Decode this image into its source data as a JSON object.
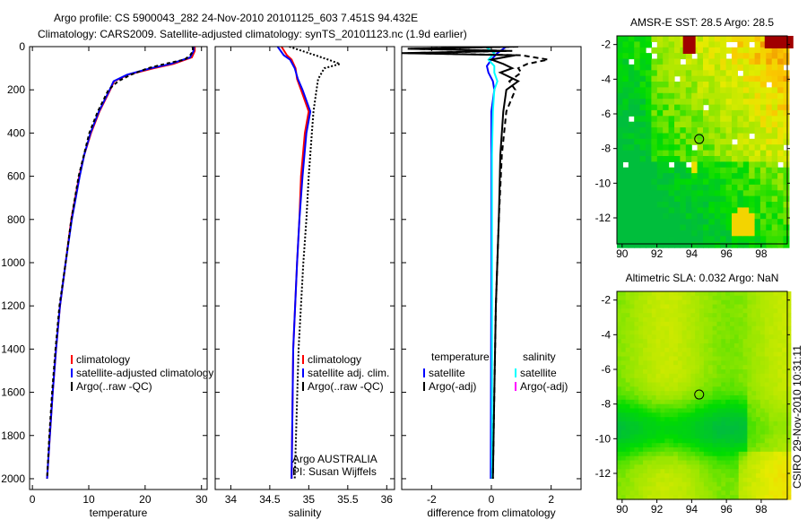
{
  "header": {
    "title_line1": "Argo profile: CS 5900043_282 24-Nov-2010 20101125_603 7.451S 94.432E",
    "title_line2": "Climatology: CARS2009. Satellite-adjusted climatology: synTS_20101123.nc (1.9d earlier)"
  },
  "side_label": "CSIRO 29-Nov-2010 10:31:11",
  "colors": {
    "climatology": "#ff0000",
    "satellite": "#0000ff",
    "argo": "#000000",
    "sal_satellite": "#00ffff",
    "sal_argo": "#ff00ff"
  },
  "chart_data": [
    {
      "type": "line",
      "id": "temperature",
      "xlabel": "temperature",
      "xlim": [
        -0.5,
        31
      ],
      "ylim": [
        0,
        2050
      ],
      "xticks": [
        "0",
        "10",
        "20",
        "30"
      ],
      "xtick_values": [
        0,
        10,
        20,
        30
      ],
      "yticks": [
        "0",
        "200",
        "400",
        "600",
        "800",
        "1000",
        "1200",
        "1400",
        "1600",
        "1800",
        "2000"
      ],
      "ytick_values": [
        0,
        200,
        400,
        600,
        800,
        1000,
        1200,
        1400,
        1600,
        1800,
        2000
      ],
      "legend": [
        "climatology",
        "satellite-adjusted climatology",
        "Argo(..raw -QC)"
      ],
      "series": [
        {
          "name": "climatology",
          "color": "#ff0000",
          "dash": "",
          "depth": [
            0,
            20,
            50,
            80,
            100,
            130,
            160,
            200,
            300,
            400,
            500,
            600,
            800,
            1000,
            1200,
            1400,
            1600,
            1800,
            2000
          ],
          "values": [
            28.8,
            28.8,
            28.3,
            25,
            21.5,
            17,
            14.5,
            13.8,
            11.9,
            10.4,
            9.2,
            8.3,
            6.9,
            5.9,
            4.9,
            4.2,
            3.6,
            3.1,
            2.6
          ]
        },
        {
          "name": "satellite-adjusted climatology",
          "color": "#0000ff",
          "dash": "",
          "depth": [
            0,
            20,
            50,
            80,
            100,
            130,
            160,
            200,
            300,
            400,
            500,
            600,
            800,
            1000,
            1200,
            1400,
            1600,
            1800,
            2000
          ],
          "values": [
            28.6,
            28.6,
            28.0,
            24.5,
            21,
            16.8,
            14.4,
            13.7,
            11.8,
            10.3,
            9.2,
            8.4,
            7.0,
            5.9,
            4.9,
            4.2,
            3.6,
            3.1,
            2.6
          ]
        },
        {
          "name": "Argo(..raw -QC)",
          "color": "#000000",
          "dash": "4,3",
          "depth": [
            0,
            20,
            40,
            60,
            80,
            100,
            130,
            160,
            200,
            300,
            400,
            600,
            800,
            1000,
            1200,
            1400,
            1600,
            1800,
            2000
          ],
          "values": [
            28.4,
            28.5,
            28.0,
            27,
            23.5,
            20.5,
            17.5,
            15.2,
            13.5,
            11.6,
            10.1,
            8.2,
            6.9,
            5.9,
            4.8,
            4.1,
            3.5,
            3.0,
            2.6
          ]
        }
      ]
    },
    {
      "type": "line",
      "id": "salinity",
      "xlabel": "salinity",
      "xlim": [
        33.8,
        36.1
      ],
      "ylim": [
        0,
        2050
      ],
      "xticks": [
        "34",
        "34.5",
        "35",
        "35.5",
        "36"
      ],
      "xtick_values": [
        34,
        34.5,
        35,
        35.5,
        36
      ],
      "legend": [
        "climatology",
        "satellite adj. clim.",
        "Argo(..raw -QC)"
      ],
      "annotation": [
        "Argo AUSTRALIA",
        "PI: Susan Wijffels"
      ],
      "series": [
        {
          "name": "climatology",
          "color": "#ff0000",
          "dash": "",
          "depth": [
            0,
            40,
            60,
            100,
            150,
            200,
            300,
            400,
            600,
            800,
            1000,
            1400,
            2000
          ],
          "values": [
            34.65,
            34.72,
            34.78,
            34.83,
            34.85,
            34.9,
            35.0,
            34.95,
            34.9,
            34.88,
            34.85,
            34.8,
            34.78
          ]
        },
        {
          "name": "satellite adj. clim.",
          "color": "#0000ff",
          "dash": "",
          "depth": [
            0,
            40,
            60,
            100,
            150,
            200,
            300,
            400,
            600,
            800,
            1000,
            1400,
            2000
          ],
          "values": [
            34.6,
            34.68,
            34.76,
            34.82,
            34.86,
            34.92,
            35.02,
            34.97,
            34.92,
            34.88,
            34.85,
            34.8,
            34.78
          ]
        },
        {
          "name": "Argo(..raw -QC)",
          "color": "#000000",
          "dash": "2,2",
          "depth": [
            0,
            30,
            60,
            80,
            100,
            150,
            200,
            300,
            400,
            600,
            800,
            1000,
            1400,
            2000
          ],
          "values": [
            34.75,
            35.0,
            35.25,
            35.4,
            35.2,
            35.12,
            35.1,
            35.06,
            35.04,
            35.0,
            34.97,
            34.93,
            34.87,
            34.82
          ]
        }
      ]
    },
    {
      "type": "line",
      "id": "difference",
      "xlabel": "difference from climatology",
      "xlim": [
        -3,
        3
      ],
      "ylim": [
        0,
        2050
      ],
      "xticks": [
        "-2",
        "0",
        "2"
      ],
      "xtick_values": [
        -2,
        0,
        2
      ],
      "legend_headers": [
        "temperature",
        "salinity"
      ],
      "legend": [
        "satellite",
        "Argo(-adj)",
        "satellite",
        "Argo(-adj)"
      ],
      "series": [
        {
          "name": "temperature satellite",
          "color": "#0000ff",
          "dash": "",
          "depth": [
            0,
            30,
            60,
            90,
            120,
            160,
            200,
            300,
            500,
            1000,
            2000
          ],
          "values": [
            0.5,
            0.2,
            0.0,
            -0.15,
            -0.1,
            0.05,
            0.1,
            0.0,
            0.0,
            0.0,
            -0.02
          ]
        },
        {
          "name": "salinity satellite",
          "color": "#00ffff",
          "dash": "",
          "depth": [
            0,
            30,
            60,
            90,
            120,
            160,
            200,
            300,
            500,
            1000,
            2000
          ],
          "values": [
            -0.2,
            0.1,
            -0.1,
            0.1,
            0.1,
            0.2,
            0.1,
            0.05,
            0.02,
            0.02,
            0.02
          ]
        },
        {
          "name": "temperature Argo(-adj)",
          "color": "#000000",
          "dash": "",
          "depth": [
            0,
            10,
            20,
            30,
            40,
            60,
            80,
            100,
            120,
            160,
            200,
            300,
            500,
            800,
            1200,
            1600,
            2000
          ],
          "values": [
            0.8,
            -2.8,
            0.6,
            -3.0,
            0.8,
            0.0,
            0.4,
            0.7,
            0.3,
            0.9,
            0.5,
            0.4,
            0.3,
            0.25,
            0.15,
            0.1,
            0.05
          ]
        },
        {
          "name": "temperature Argo(-adj) dashed",
          "color": "#000000",
          "dash": "6,4",
          "depth": [
            0,
            10,
            20,
            30,
            40,
            60,
            80,
            100,
            120,
            160,
            200,
            300,
            500,
            800,
            1200,
            1600,
            2000
          ],
          "values": [
            0.9,
            -2.7,
            0.7,
            -2.8,
            1.0,
            1.9,
            1.2,
            0.9,
            1.0,
            0.6,
            0.8,
            0.5,
            0.35,
            0.25,
            0.15,
            0.1,
            0.05
          ]
        }
      ]
    },
    {
      "type": "heatmap",
      "id": "sst_map",
      "title": "AMSR-E SST: 28.5 Argo: 28.5",
      "xlim": [
        89.7,
        99.5
      ],
      "ylim": [
        -13.5,
        -1.5
      ],
      "xticks": [
        "90",
        "92",
        "94",
        "96",
        "98"
      ],
      "xtick_values": [
        90,
        92,
        94,
        96,
        98
      ],
      "yticks": [
        "-2",
        "-4",
        "-6",
        "-8",
        "-10",
        "-12"
      ],
      "ytick_values": [
        -2,
        -4,
        -6,
        -8,
        -10,
        -12
      ],
      "argo_position": [
        94.432,
        -7.451
      ]
    },
    {
      "type": "heatmap",
      "id": "sla_map",
      "title": "Altimetric SLA: 0.032 Argo: NaN",
      "xlim": [
        89.7,
        99.5
      ],
      "ylim": [
        -13.5,
        -1.5
      ],
      "xticks": [
        "90",
        "92",
        "94",
        "96",
        "98"
      ],
      "xtick_values": [
        90,
        92,
        94,
        96,
        98
      ],
      "yticks": [
        "-2",
        "-4",
        "-6",
        "-8",
        "-10",
        "-12"
      ],
      "ytick_values": [
        -2,
        -4,
        -6,
        -8,
        -10,
        -12
      ],
      "argo_position": [
        94.432,
        -7.451
      ]
    }
  ]
}
